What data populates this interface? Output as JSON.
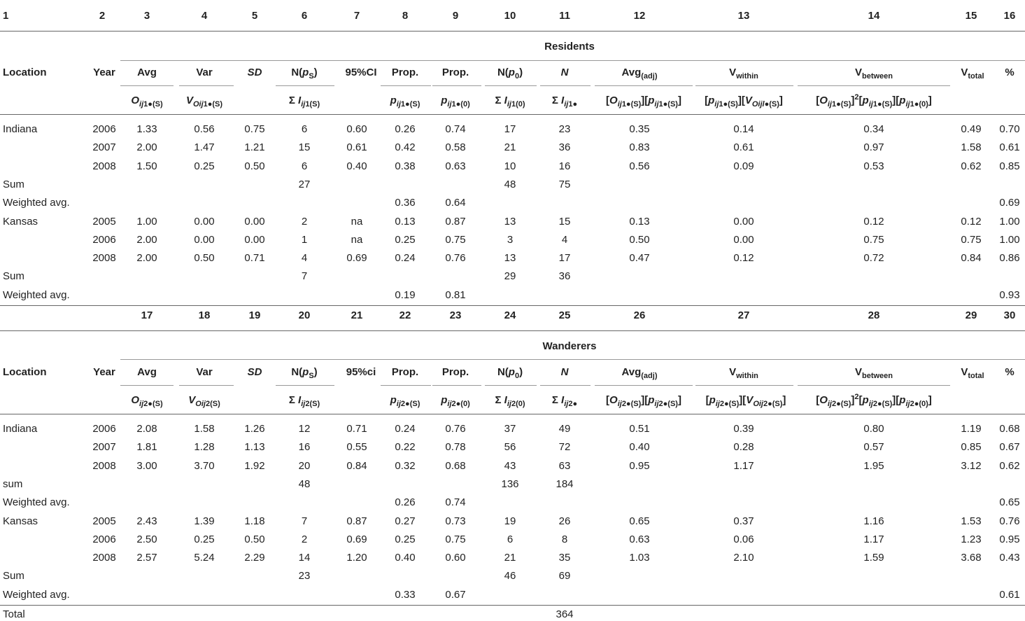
{
  "column_numbers_top": [
    "1",
    "2",
    "3",
    "4",
    "5",
    "6",
    "7",
    "8",
    "9",
    "10",
    "11",
    "12",
    "13",
    "14",
    "15",
    "16"
  ],
  "column_numbers_bottom": [
    "17",
    "18",
    "19",
    "20",
    "21",
    "22",
    "23",
    "24",
    "25",
    "26",
    "27",
    "28",
    "29",
    "30"
  ],
  "residents": {
    "title": "Residents",
    "header1": [
      "Location",
      "Year",
      "Avg",
      "Var",
      "SD",
      "N(pS)",
      "95%CI",
      "Prop.",
      "Prop.",
      "N(p0)",
      "N",
      "Avg(adj)",
      "Vwithin",
      "Vbetween",
      "Vtotal",
      "%"
    ],
    "header2": [
      "Oij1●(S)",
      "VOij1●(S)",
      "Σ Iij1(S)",
      "pij1●(S)",
      "pij1●(0)",
      "Σ Iij1(0)",
      "Σ Iij1●",
      "[Oij1●(S)][pij1●(S)]",
      "[pij1●(S)][VOijl●(S)]",
      "[Oij1●(S)]2[pij1●(S)][pij1●(0)]"
    ],
    "rows": [
      [
        "Indiana",
        "2006",
        "1.33",
        "0.56",
        "0.75",
        "6",
        "0.60",
        "0.26",
        "0.74",
        "17",
        "23",
        "0.35",
        "0.14",
        "0.34",
        "0.49",
        "0.70"
      ],
      [
        "",
        "2007",
        "2.00",
        "1.47",
        "1.21",
        "15",
        "0.61",
        "0.42",
        "0.58",
        "21",
        "36",
        "0.83",
        "0.61",
        "0.97",
        "1.58",
        "0.61"
      ],
      [
        "",
        "2008",
        "1.50",
        "0.25",
        "0.50",
        "6",
        "0.40",
        "0.38",
        "0.63",
        "10",
        "16",
        "0.56",
        "0.09",
        "0.53",
        "0.62",
        "0.85"
      ],
      [
        "Sum",
        "",
        "",
        "",
        "",
        "27",
        "",
        "",
        "",
        "48",
        "75",
        "",
        "",
        "",
        "",
        ""
      ],
      [
        "Weighted avg.",
        "",
        "",
        "",
        "",
        "",
        "",
        "0.36",
        "0.64",
        "",
        "",
        "",
        "",
        "",
        "",
        "0.69"
      ],
      [
        "Kansas",
        "2005",
        "1.00",
        "0.00",
        "0.00",
        "2",
        "na",
        "0.13",
        "0.87",
        "13",
        "15",
        "0.13",
        "0.00",
        "0.12",
        "0.12",
        "1.00"
      ],
      [
        "",
        "2006",
        "2.00",
        "0.00",
        "0.00",
        "1",
        "na",
        "0.25",
        "0.75",
        "3",
        "4",
        "0.50",
        "0.00",
        "0.75",
        "0.75",
        "1.00"
      ],
      [
        "",
        "2008",
        "2.00",
        "0.50",
        "0.71",
        "4",
        "0.69",
        "0.24",
        "0.76",
        "13",
        "17",
        "0.47",
        "0.12",
        "0.72",
        "0.84",
        "0.86"
      ],
      [
        "Sum",
        "",
        "",
        "",
        "",
        "7",
        "",
        "",
        "",
        "29",
        "36",
        "",
        "",
        "",
        "",
        ""
      ],
      [
        "Weighted avg.",
        "",
        "",
        "",
        "",
        "",
        "",
        "0.19",
        "0.81",
        "",
        "",
        "",
        "",
        "",
        "",
        "0.93"
      ]
    ]
  },
  "wanderers": {
    "title": "Wanderers",
    "header1": [
      "Location",
      "Year",
      "Avg",
      "Var",
      "SD",
      "N(pS)",
      "95%ci",
      "Prop.",
      "Prop.",
      "N(p0)",
      "N",
      "Avg(adj)",
      "Vwithin",
      "Vbetween",
      "Vtotal",
      "%"
    ],
    "header2": [
      "Oij2●(S)",
      "VOij2(S)",
      "Σ Iij2(S)",
      "pij2●(S)",
      "pij2●(0)",
      "Σ Iij2(0)",
      "Σ Iij2●",
      "[Oij2●(S)][pij2●(S)]",
      "[pij2●(S)][VOij2●(S)]",
      "[Oij2●(S)]2[pij2●(S)][pij2●(0)]"
    ],
    "rows": [
      [
        "Indiana",
        "2006",
        "2.08",
        "1.58",
        "1.26",
        "12",
        "0.71",
        "0.24",
        "0.76",
        "37",
        "49",
        "0.51",
        "0.39",
        "0.80",
        "1.19",
        "0.68"
      ],
      [
        "",
        "2007",
        "1.81",
        "1.28",
        "1.13",
        "16",
        "0.55",
        "0.22",
        "0.78",
        "56",
        "72",
        "0.40",
        "0.28",
        "0.57",
        "0.85",
        "0.67"
      ],
      [
        "",
        "2008",
        "3.00",
        "3.70",
        "1.92",
        "20",
        "0.84",
        "0.32",
        "0.68",
        "43",
        "63",
        "0.95",
        "1.17",
        "1.95",
        "3.12",
        "0.62"
      ],
      [
        "sum",
        "",
        "",
        "",
        "",
        "48",
        "",
        "",
        "",
        "136",
        "184",
        "",
        "",
        "",
        "",
        ""
      ],
      [
        "Weighted avg.",
        "",
        "",
        "",
        "",
        "",
        "",
        "0.26",
        "0.74",
        "",
        "",
        "",
        "",
        "",
        "",
        "0.65"
      ],
      [
        "Kansas",
        "2005",
        "2.43",
        "1.39",
        "1.18",
        "7",
        "0.87",
        "0.27",
        "0.73",
        "19",
        "26",
        "0.65",
        "0.37",
        "1.16",
        "1.53",
        "0.76"
      ],
      [
        "",
        "2006",
        "2.50",
        "0.25",
        "0.50",
        "2",
        "0.69",
        "0.25",
        "0.75",
        "6",
        "8",
        "0.63",
        "0.06",
        "1.17",
        "1.23",
        "0.95"
      ],
      [
        "",
        "2008",
        "2.57",
        "5.24",
        "2.29",
        "14",
        "1.20",
        "0.40",
        "0.60",
        "21",
        "35",
        "1.03",
        "2.10",
        "1.59",
        "3.68",
        "0.43"
      ],
      [
        "Sum",
        "",
        "",
        "",
        "",
        "23",
        "",
        "",
        "",
        "46",
        "69",
        "",
        "",
        "",
        "",
        ""
      ],
      [
        "Weighted avg.",
        "",
        "",
        "",
        "",
        "",
        "",
        "0.33",
        "0.67",
        "",
        "",
        "",
        "",
        "",
        "",
        "0.61"
      ]
    ]
  },
  "total_row": [
    "Total",
    "364"
  ]
}
